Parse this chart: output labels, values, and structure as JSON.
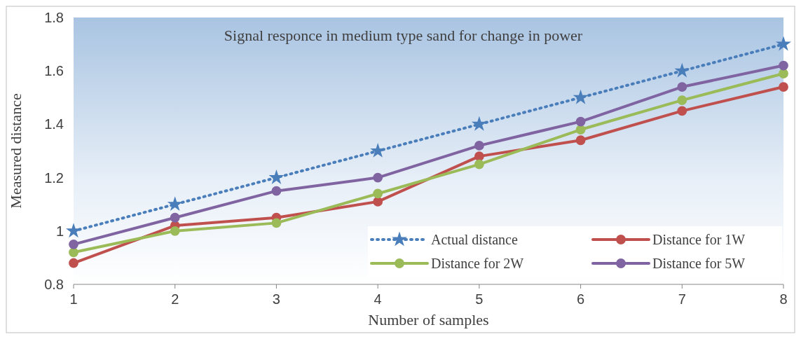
{
  "chart_data": {
    "type": "line",
    "title": "Signal responce in medium type sand for change in power",
    "xlabel": "Number of samples",
    "ylabel": "Measured distance",
    "x": [
      1,
      2,
      3,
      4,
      5,
      6,
      7,
      8
    ],
    "xlim": [
      1,
      8
    ],
    "xticks": [
      1,
      2,
      3,
      4,
      5,
      6,
      7,
      8
    ],
    "ylim": [
      0.8,
      1.8
    ],
    "yticks": [
      0.8,
      1,
      1.2,
      1.4,
      1.6,
      1.8
    ],
    "series": [
      {
        "name": "Actual distance",
        "color": "#4a7ebb",
        "values": [
          1.0,
          1.1,
          1.2,
          1.3,
          1.4,
          1.5,
          1.6,
          1.7
        ],
        "marker": "star",
        "line_style": "dotted"
      },
      {
        "name": "Distance for 1W",
        "color": "#c0504d",
        "values": [
          0.88,
          1.02,
          1.05,
          1.11,
          1.28,
          1.34,
          1.45,
          1.54
        ],
        "marker": "circle",
        "line_style": "solid"
      },
      {
        "name": "Distance for 2W",
        "color": "#9bbb59",
        "values": [
          0.92,
          1.0,
          1.03,
          1.14,
          1.25,
          1.38,
          1.49,
          1.59
        ],
        "marker": "circle",
        "line_style": "solid"
      },
      {
        "name": "Distance for 5W",
        "color": "#8064a2",
        "values": [
          0.95,
          1.05,
          1.15,
          1.2,
          1.32,
          1.41,
          1.54,
          1.62
        ],
        "marker": "circle",
        "line_style": "solid"
      }
    ],
    "legend": "bottom right",
    "grid": false
  }
}
